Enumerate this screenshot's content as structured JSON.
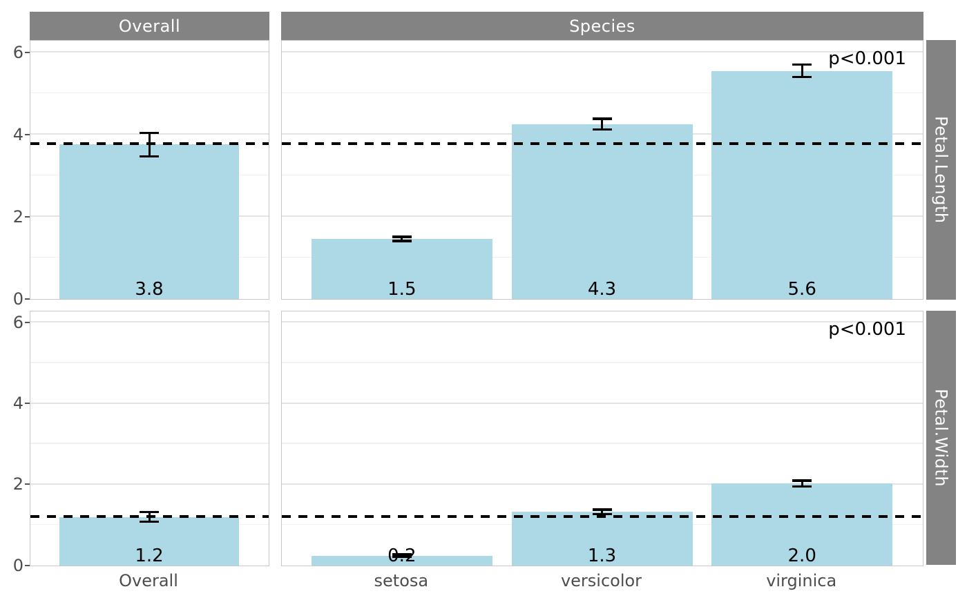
{
  "colors": {
    "bar_fill": "#ADD8E6",
    "strip_background": "#838383",
    "strip_text": "#ffffff",
    "panel_border": "#c7c7c7",
    "grid_major": "#e4e4e4",
    "grid_minor": "#f1f1f1",
    "dashed_line": "#000000",
    "error_bar": "#000000",
    "axis_text": "#4d4d4d",
    "value_label_text": "#000000"
  },
  "chart_data": {
    "type": "bar",
    "title": "",
    "description": "Faceted bar chart of iris petal means with 95% CI error bars, dashed grand-mean reference line, value labels and p-values",
    "col_strips": [
      "Overall",
      "Species"
    ],
    "row_strips": [
      "Petal.Length",
      "Petal.Width"
    ],
    "y_ticks": [
      0,
      2,
      4,
      6
    ],
    "y_range": [
      0,
      6.3
    ],
    "grid": "on",
    "x_categories": [
      [
        "Overall"
      ],
      [
        "setosa",
        "versicolor",
        "virginica"
      ]
    ],
    "rows": [
      {
        "facet": "Petal.Length",
        "p_label": "p<0.001",
        "dashed_line_mean": 3.758,
        "panels": [
          {
            "bars": [
              {
                "category": "Overall",
                "mean": 3.758,
                "label": "3.8",
                "ci_low": 3.47,
                "ci_high": 4.04
              }
            ]
          },
          {
            "bars": [
              {
                "category": "setosa",
                "mean": 1.462,
                "label": "1.5",
                "ci_low": 1.41,
                "ci_high": 1.51
              },
              {
                "category": "versicolor",
                "mean": 4.26,
                "label": "4.3",
                "ci_low": 4.13,
                "ci_high": 4.39
              },
              {
                "category": "virginica",
                "mean": 5.552,
                "label": "5.6",
                "ci_low": 5.4,
                "ci_high": 5.71
              }
            ]
          }
        ]
      },
      {
        "facet": "Petal.Width",
        "p_label": "p<0.001",
        "dashed_line_mean": 1.199,
        "panels": [
          {
            "bars": [
              {
                "category": "Overall",
                "mean": 1.199,
                "label": "1.2",
                "ci_low": 1.08,
                "ci_high": 1.32
              }
            ]
          },
          {
            "bars": [
              {
                "category": "setosa",
                "mean": 0.246,
                "label": "0.2",
                "ci_low": 0.22,
                "ci_high": 0.28
              },
              {
                "category": "versicolor",
                "mean": 1.326,
                "label": "1.3",
                "ci_low": 1.27,
                "ci_high": 1.38
              },
              {
                "category": "virginica",
                "mean": 2.026,
                "label": "2.0",
                "ci_low": 1.95,
                "ci_high": 2.1
              }
            ]
          }
        ]
      }
    ]
  }
}
